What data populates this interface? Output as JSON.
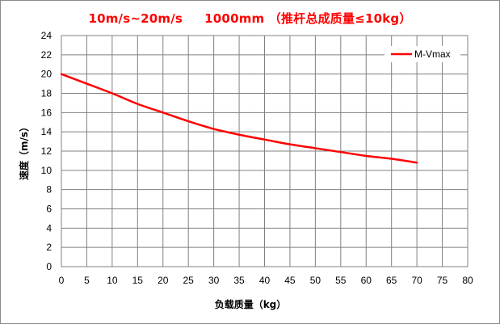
{
  "chart_data": {
    "type": "line",
    "title": "10m/s~20m/s     1000mm （推杆总成质量≤10kg）",
    "xlabel": "负载质量（kg）",
    "ylabel": "速度（m/s）",
    "xlim": [
      0,
      80
    ],
    "ylim": [
      0,
      24
    ],
    "xticks": [
      "0",
      "5",
      "10",
      "15",
      "20",
      "25",
      "30",
      "35",
      "40",
      "45",
      "50",
      "55",
      "60",
      "65",
      "70",
      "75",
      "80"
    ],
    "yticks": [
      "0",
      "2",
      "4",
      "6",
      "8",
      "10",
      "12",
      "14",
      "16",
      "18",
      "20",
      "22",
      "24"
    ],
    "grid": true,
    "legend_position": "top-right",
    "series": [
      {
        "name": "M-Vmax",
        "color": "#ff0000",
        "x": [
          0,
          5,
          10,
          15,
          20,
          25,
          30,
          35,
          40,
          45,
          50,
          55,
          60,
          65,
          70
        ],
        "y": [
          20.0,
          19.0,
          18.0,
          16.9,
          16.0,
          15.1,
          14.3,
          13.7,
          13.2,
          12.7,
          12.3,
          11.9,
          11.5,
          11.2,
          10.8
        ]
      }
    ]
  }
}
